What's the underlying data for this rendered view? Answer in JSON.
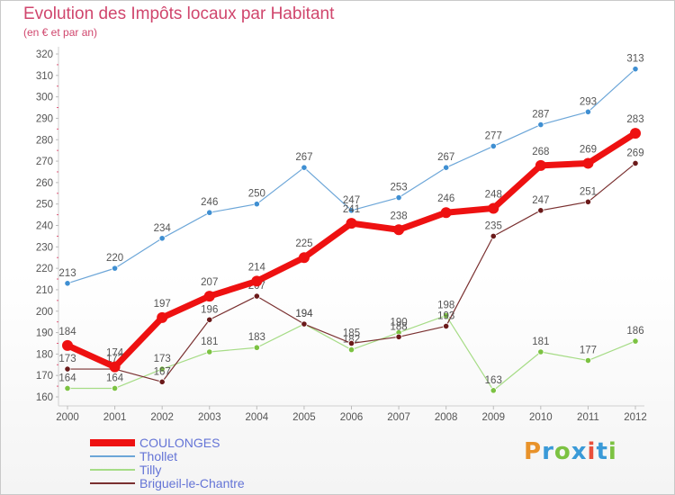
{
  "title": "Evolution des Impôts locaux par Habitant",
  "subtitle": "(en € et par an)",
  "brand": {
    "text": "Proxiti",
    "colors": [
      "#e8922a",
      "#3a9ad8",
      "#7cc242",
      "#3a9ad8",
      "#e94f3b",
      "#3a9ad8",
      "#7cc242"
    ]
  },
  "chart_data": {
    "type": "line",
    "title": "Evolution des Impôts locaux par Habitant",
    "subtitle": "(en € et par an)",
    "x": [
      "2000",
      "2001",
      "2002",
      "2003",
      "2004",
      "2005",
      "2006",
      "2007",
      "2008",
      "2009",
      "2010",
      "2011",
      "2012"
    ],
    "ylim": [
      160,
      320
    ],
    "yticks": [
      160,
      170,
      180,
      190,
      200,
      210,
      220,
      230,
      240,
      250,
      260,
      270,
      280,
      290,
      300,
      310,
      320
    ],
    "grid": false,
    "legend": "bottom-left",
    "series": [
      {
        "name": "Thollet",
        "color": "#6ca6d8",
        "marker": "#3f8fd2",
        "width": 1.2,
        "label_pos": "above",
        "values": [
          213,
          220,
          234,
          246,
          250,
          267,
          247,
          253,
          267,
          277,
          287,
          293,
          313
        ]
      },
      {
        "name": "Tilly",
        "color": "#a6dc86",
        "marker": "#7cc242",
        "width": 1.2,
        "label_pos": "above",
        "values": [
          164,
          164,
          173,
          181,
          183,
          194,
          182,
          190,
          198,
          163,
          181,
          177,
          186
        ]
      },
      {
        "name": "Brigueil-le-Chantre",
        "color": "#7a3030",
        "marker": "#6b1a1a",
        "width": 1.2,
        "label_pos": "above",
        "values": [
          173,
          173,
          167,
          196,
          207,
          194,
          185,
          188,
          193,
          235,
          247,
          251,
          269
        ]
      },
      {
        "name": "COULONGES",
        "color": "#ee1111",
        "marker": "#ee1111",
        "width": 7,
        "label_pos": "above",
        "values": [
          184,
          174,
          197,
          207,
          214,
          225,
          241,
          238,
          246,
          248,
          268,
          269,
          283
        ]
      }
    ]
  },
  "legend": [
    {
      "name": "COULONGES",
      "color": "#ee1111",
      "thickness": 8
    },
    {
      "name": "Thollet",
      "color": "#6ca6d8",
      "thickness": 2
    },
    {
      "name": "Tilly",
      "color": "#a6dc86",
      "thickness": 2
    },
    {
      "name": "Brigueil-le-Chantre",
      "color": "#7a3030",
      "thickness": 2
    }
  ]
}
